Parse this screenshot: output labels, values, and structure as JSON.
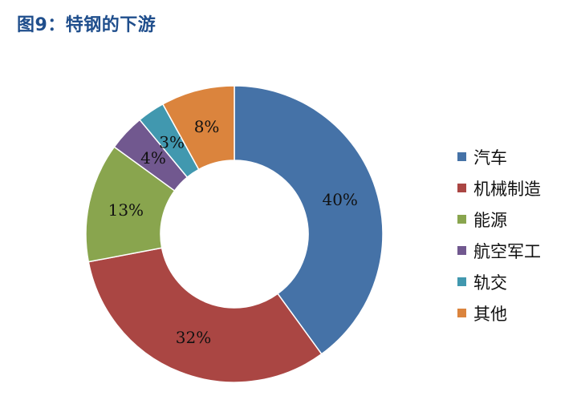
{
  "title": "图9：特钢的下游",
  "chart_data": {
    "type": "pie",
    "donut": true,
    "categories": [
      "汽车",
      "机械制造",
      "能源",
      "航空军工",
      "轨交",
      "其他"
    ],
    "values": [
      40,
      32,
      13,
      4,
      3,
      8
    ],
    "labels": [
      "40%",
      "32%",
      "13%",
      "4%",
      "3%",
      "8%"
    ],
    "colors": [
      "#4572a7",
      "#aa4643",
      "#89a54e",
      "#71588f",
      "#4198af",
      "#db843d"
    ],
    "legend": "right"
  }
}
